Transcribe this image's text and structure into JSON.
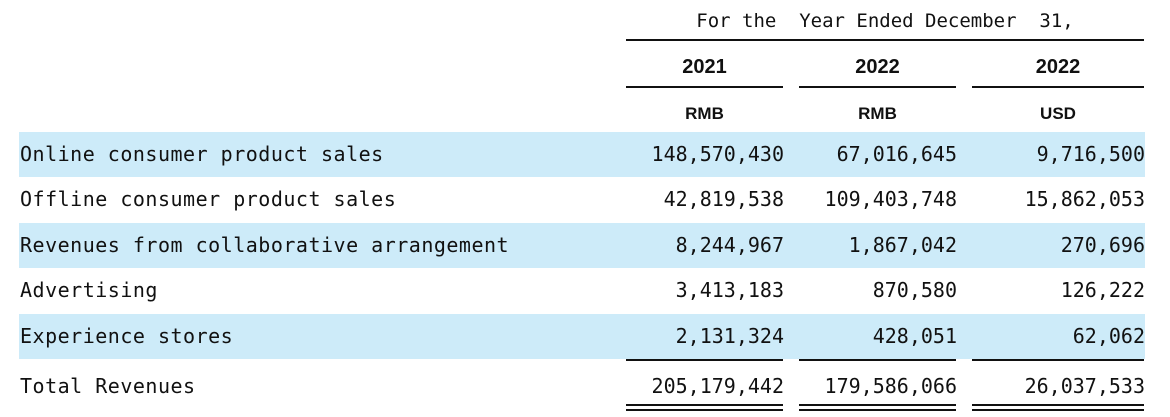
{
  "header": {
    "period_title": "For the  Year Ended December  31,",
    "years": [
      "2021",
      "2022",
      "2022"
    ],
    "currencies": [
      "RMB",
      "RMB",
      "USD"
    ]
  },
  "rows": [
    {
      "label": "Online consumer product sales",
      "values": [
        "148,570,430",
        "67,016,645",
        "9,716,500"
      ]
    },
    {
      "label": "Offline consumer product sales",
      "values": [
        "42,819,538",
        "109,403,748",
        "15,862,053"
      ]
    },
    {
      "label": "Revenues from collaborative arrangement",
      "values": [
        "8,244,967",
        "1,867,042",
        "270,696"
      ]
    },
    {
      "label": "Advertising",
      "values": [
        "3,413,183",
        "870,580",
        "126,222"
      ]
    },
    {
      "label": "Experience stores",
      "values": [
        "2,131,324",
        "428,051",
        "62,062"
      ]
    }
  ],
  "total": {
    "label": "Total Revenues",
    "values": [
      "205,179,442",
      "179,586,066",
      "26,037,533"
    ]
  },
  "colors": {
    "shade": "#cdebf9",
    "text": "#111111"
  }
}
